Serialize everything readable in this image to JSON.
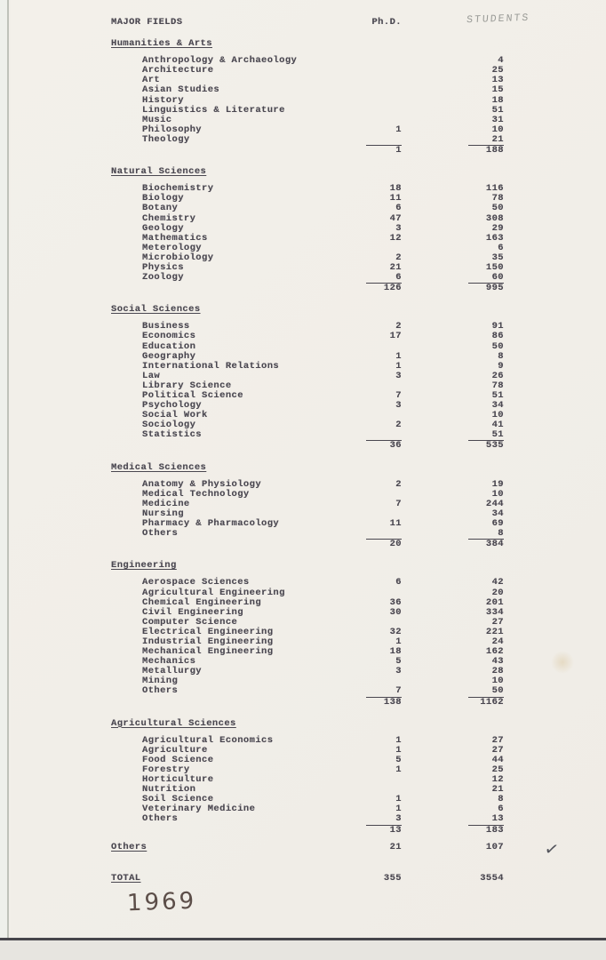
{
  "document": {
    "header": {
      "title": "MAJOR FIELDS",
      "phd_col": "Ph.D.",
      "students_col_handwritten": "STUDENTS"
    },
    "annotations": {
      "year": "1969",
      "checkmark": "✓"
    },
    "sections": [
      {
        "name": "Humanities & Arts",
        "items": [
          {
            "label": "Anthropology & Archaeology",
            "phd": "",
            "students": "4"
          },
          {
            "label": "Architecture",
            "phd": "",
            "students": "25"
          },
          {
            "label": "Art",
            "phd": "",
            "students": "13"
          },
          {
            "label": "Asian Studies",
            "phd": "",
            "students": "15"
          },
          {
            "label": "History",
            "phd": "",
            "students": "18"
          },
          {
            "label": "Linguistics & Literature",
            "phd": "",
            "students": "51"
          },
          {
            "label": "Music",
            "phd": "",
            "students": "31"
          },
          {
            "label": "Philosophy",
            "phd": "1",
            "students": "10"
          },
          {
            "label": "Theology",
            "phd": "",
            "students": "21"
          }
        ],
        "subtotal": {
          "phd": "1",
          "students": "188"
        }
      },
      {
        "name": "Natural Sciences",
        "items": [
          {
            "label": "Biochemistry",
            "phd": "18",
            "students": "116"
          },
          {
            "label": "Biology",
            "phd": "11",
            "students": "78"
          },
          {
            "label": "Botany",
            "phd": "6",
            "students": "50"
          },
          {
            "label": "Chemistry",
            "phd": "47",
            "students": "308"
          },
          {
            "label": "Geology",
            "phd": "3",
            "students": "29"
          },
          {
            "label": "Mathematics",
            "phd": "12",
            "students": "163"
          },
          {
            "label": "Meterology",
            "phd": "",
            "students": "6"
          },
          {
            "label": "Microbiology",
            "phd": "2",
            "students": "35"
          },
          {
            "label": "Physics",
            "phd": "21",
            "students": "150"
          },
          {
            "label": "Zoology",
            "phd": "6",
            "students": "60"
          }
        ],
        "subtotal": {
          "phd": "126",
          "students": "995"
        }
      },
      {
        "name": "Social Sciences",
        "items": [
          {
            "label": "Business",
            "phd": "2",
            "students": "91"
          },
          {
            "label": "Economics",
            "phd": "17",
            "students": "86"
          },
          {
            "label": "Education",
            "phd": "",
            "students": "50"
          },
          {
            "label": "Geography",
            "phd": "1",
            "students": "8"
          },
          {
            "label": "International Relations",
            "phd": "1",
            "students": "9"
          },
          {
            "label": "Law",
            "phd": "3",
            "students": "26"
          },
          {
            "label": "Library Science",
            "phd": "",
            "students": "78"
          },
          {
            "label": "Political Science",
            "phd": "7",
            "students": "51"
          },
          {
            "label": "Psychology",
            "phd": "3",
            "students": "34"
          },
          {
            "label": "Social Work",
            "phd": "",
            "students": "10"
          },
          {
            "label": "Sociology",
            "phd": "2",
            "students": "41"
          },
          {
            "label": "Statistics",
            "phd": "",
            "students": "51"
          }
        ],
        "subtotal": {
          "phd": "36",
          "students": "535"
        }
      },
      {
        "name": "Medical Sciences",
        "items": [
          {
            "label": "Anatomy & Physiology",
            "phd": "2",
            "students": "19"
          },
          {
            "label": "Medical Technology",
            "phd": "",
            "students": "10"
          },
          {
            "label": "Medicine",
            "phd": "7",
            "students": "244"
          },
          {
            "label": "Nursing",
            "phd": "",
            "students": "34"
          },
          {
            "label": "Pharmacy & Pharmacology",
            "phd": "11",
            "students": "69"
          },
          {
            "label": "Others",
            "phd": "",
            "students": "8"
          }
        ],
        "subtotal": {
          "phd": "20",
          "students": "384"
        }
      },
      {
        "name": "Engineering",
        "items": [
          {
            "label": "Aerospace Sciences",
            "phd": "6",
            "students": "42"
          },
          {
            "label": "Agricultural Engineering",
            "phd": "",
            "students": "20"
          },
          {
            "label": "Chemical Engineering",
            "phd": "36",
            "students": "201"
          },
          {
            "label": "Civil Engineering",
            "phd": "30",
            "students": "334"
          },
          {
            "label": "Computer Science",
            "phd": "",
            "students": "27"
          },
          {
            "label": "Electrical Engineering",
            "phd": "32",
            "students": "221"
          },
          {
            "label": "Industrial Engineering",
            "phd": "1",
            "students": "24"
          },
          {
            "label": "Mechanical Engineering",
            "phd": "18",
            "students": "162"
          },
          {
            "label": "Mechanics",
            "phd": "5",
            "students": "43"
          },
          {
            "label": "Metallurgy",
            "phd": "3",
            "students": "28"
          },
          {
            "label": "Mining",
            "phd": "",
            "students": "10"
          },
          {
            "label": "Others",
            "phd": "7",
            "students": "50"
          }
        ],
        "subtotal": {
          "phd": "138",
          "students": "1162"
        }
      },
      {
        "name": "Agricultural Sciences",
        "items": [
          {
            "label": "Agricultural Economics",
            "phd": "1",
            "students": "27"
          },
          {
            "label": "Agriculture",
            "phd": "1",
            "students": "27"
          },
          {
            "label": "Food Science",
            "phd": "5",
            "students": "44"
          },
          {
            "label": "Forestry",
            "phd": "1",
            "students": "25"
          },
          {
            "label": "Horticulture",
            "phd": "",
            "students": "12"
          },
          {
            "label": "Nutrition",
            "phd": "",
            "students": "21"
          },
          {
            "label": "Soil Science",
            "phd": "1",
            "students": "8"
          },
          {
            "label": "Veterinary Medicine",
            "phd": "1",
            "students": "6"
          },
          {
            "label": "Others",
            "phd": "3",
            "students": "13"
          }
        ],
        "subtotal": {
          "phd": "13",
          "students": "183"
        }
      }
    ],
    "others_row": {
      "label": "Others",
      "phd": "21",
      "students": "107"
    },
    "total_row": {
      "label": "TOTAL",
      "phd": "355",
      "students": "3554"
    }
  }
}
